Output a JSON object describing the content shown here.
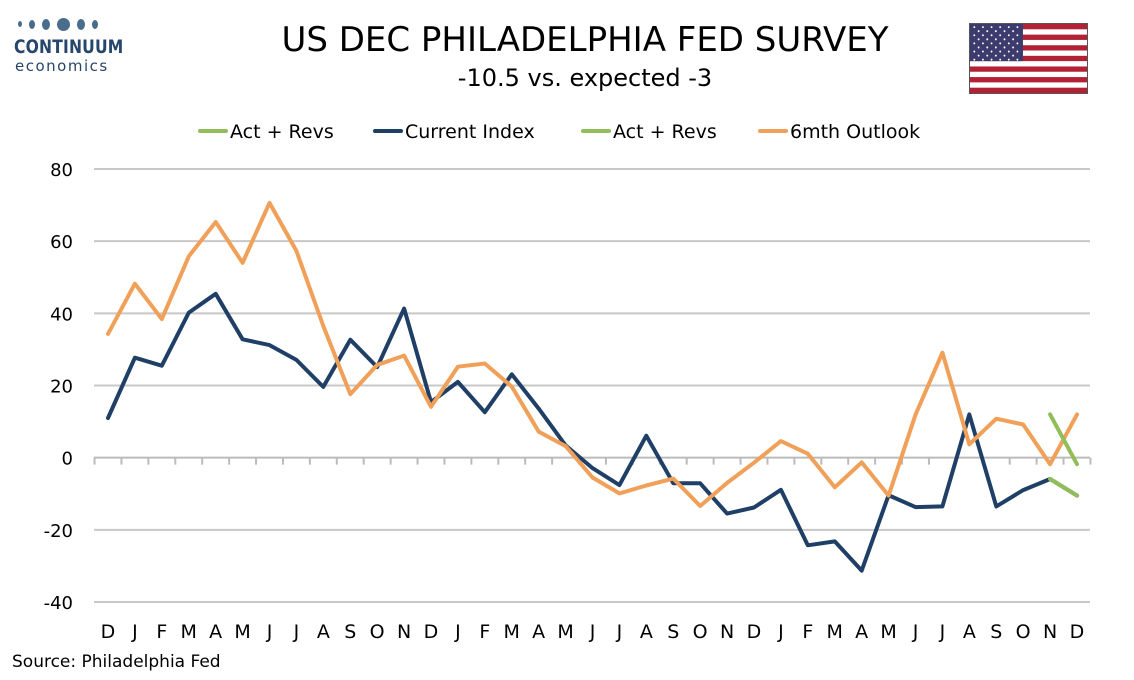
{
  "header": {
    "logo_word": "CONTINUUM",
    "logo_sub": "economics",
    "title": "US DEC PHILADELPHIA FED SURVEY",
    "subtitle": "-10.5 vs. expected -3",
    "flag_icon": "us-flag-icon"
  },
  "footer": {
    "source": "Source: Philadelphia Fed"
  },
  "colors": {
    "current": "#1f3f66",
    "outlook": "#f0a058",
    "revs": "#92be5a",
    "grid": "#c8c8c8",
    "flag_red": "#b22234",
    "flag_blue": "#3c3b6e"
  },
  "chart_data": {
    "type": "line",
    "title": "US DEC PHILADELPHIA FED SURVEY",
    "subtitle": "-10.5 vs. expected -3",
    "categories": [
      "D",
      "J",
      "F",
      "M",
      "A",
      "M",
      "J",
      "J",
      "A",
      "S",
      "O",
      "N",
      "D",
      "J",
      "F",
      "M",
      "A",
      "M",
      "J",
      "J",
      "A",
      "S",
      "O",
      "N",
      "D",
      "J",
      "F",
      "M",
      "A",
      "M",
      "J",
      "J",
      "A",
      "S",
      "O",
      "N",
      "D"
    ],
    "ylim": [
      -40,
      80
    ],
    "yticks": [
      -40,
      -20,
      0,
      20,
      40,
      60,
      80
    ],
    "grid": "horizontal",
    "legend_position": "top",
    "series": [
      {
        "name": "Act + Revs",
        "color": "#92be5a",
        "values": [
          null,
          null,
          null,
          null,
          null,
          null,
          null,
          null,
          null,
          null,
          null,
          null,
          null,
          null,
          null,
          null,
          null,
          null,
          null,
          null,
          null,
          null,
          null,
          null,
          null,
          null,
          null,
          null,
          null,
          null,
          null,
          null,
          null,
          null,
          null,
          12,
          -1.8
        ]
      },
      {
        "name": "Current Index",
        "color": "#1f3f66",
        "values": [
          11,
          27.7,
          25.5,
          40.2,
          45.4,
          32.8,
          31.2,
          27.1,
          19.6,
          32.7,
          25.1,
          41.3,
          15.4,
          21,
          12.6,
          23.1,
          13.6,
          3.4,
          -2.9,
          -7.6,
          6.1,
          -7.1,
          -7.1,
          -15.5,
          -13.8,
          -8.9,
          -24.3,
          -23.2,
          -31.3,
          -10.4,
          -13.7,
          -13.5,
          12,
          -13.5,
          -9.0,
          -5.9,
          -10.5
        ]
      },
      {
        "name": "Act + Revs",
        "color": "#92be5a",
        "values": [
          null,
          null,
          null,
          null,
          null,
          null,
          null,
          null,
          null,
          null,
          null,
          null,
          null,
          null,
          null,
          null,
          null,
          null,
          null,
          null,
          null,
          null,
          null,
          null,
          null,
          null,
          null,
          null,
          null,
          null,
          null,
          null,
          null,
          null,
          null,
          -5.9,
          -10.5
        ]
      },
      {
        "name": "6mth Outlook",
        "color": "#f0a058",
        "values": [
          34.3,
          48.2,
          38.4,
          55.8,
          65.3,
          54,
          70.6,
          57.3,
          36.5,
          17.6,
          25.7,
          28.3,
          14.1,
          25.2,
          26.1,
          19.7,
          7.2,
          3.2,
          -5.5,
          -9.9,
          -7.7,
          -5.8,
          -13.4,
          -7,
          -1.4,
          4.6,
          1.1,
          -8.2,
          -1.3,
          -10.5,
          11.9,
          29.1,
          3.7,
          10.8,
          9.2,
          -1.8,
          12
        ]
      }
    ]
  }
}
